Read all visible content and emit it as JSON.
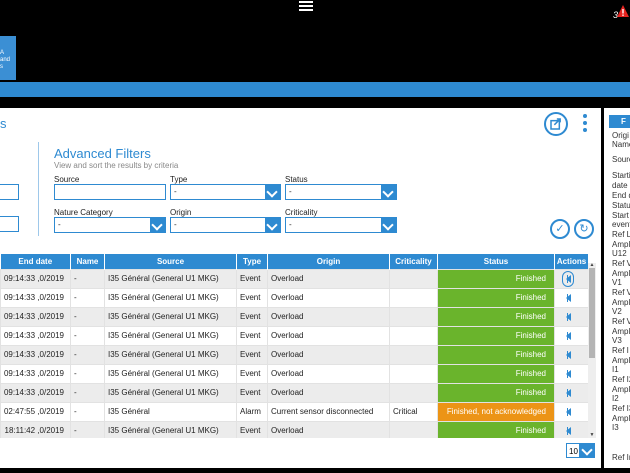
{
  "topbar": {
    "alert_count": "3"
  },
  "tile": {
    "lines": [
      "A",
      "and",
      "s"
    ]
  },
  "page": {
    "title_fragment": "s"
  },
  "filters": {
    "title": "Advanced Filters",
    "subtitle": "View and sort the results by criteria",
    "source_label": "Source",
    "type_label": "Type",
    "type_value": "-",
    "status_label": "Status",
    "status_value": "-",
    "nature_label": "Nature Category",
    "nature_value": "-",
    "origin_label": "Origin",
    "origin_value": "-",
    "criticality_label": "Criticality",
    "criticality_value": "-",
    "apply_symbol": "✓",
    "reset_symbol": "↻"
  },
  "table": {
    "headers": [
      "End date",
      "Name",
      "Source",
      "Type",
      "Origin",
      "Criticality",
      "Status",
      "Actions"
    ],
    "rows": [
      {
        "end_date": "0/2019, 09:14:33",
        "name": "-",
        "source": "I35 Général (General U1 MKG)",
        "type": "Event",
        "origin": "Overload",
        "criticality": "",
        "status": "Finished",
        "status_kind": "ok"
      },
      {
        "end_date": "0/2019, 09:14:33",
        "name": "-",
        "source": "I35 Général (General U1 MKG)",
        "type": "Event",
        "origin": "Overload",
        "criticality": "",
        "status": "Finished",
        "status_kind": "ok"
      },
      {
        "end_date": "0/2019, 09:14:33",
        "name": "-",
        "source": "I35 Général (General U1 MKG)",
        "type": "Event",
        "origin": "Overload",
        "criticality": "",
        "status": "Finished",
        "status_kind": "ok"
      },
      {
        "end_date": "0/2019, 09:14:33",
        "name": "-",
        "source": "I35 Général (General U1 MKG)",
        "type": "Event",
        "origin": "Overload",
        "criticality": "",
        "status": "Finished",
        "status_kind": "ok"
      },
      {
        "end_date": "0/2019, 09:14:33",
        "name": "-",
        "source": "I35 Général (General U1 MKG)",
        "type": "Event",
        "origin": "Overload",
        "criticality": "",
        "status": "Finished",
        "status_kind": "ok"
      },
      {
        "end_date": "0/2019, 09:14:33",
        "name": "-",
        "source": "I35 Général (General U1 MKG)",
        "type": "Event",
        "origin": "Overload",
        "criticality": "",
        "status": "Finished",
        "status_kind": "ok"
      },
      {
        "end_date": "0/2019, 09:14:33",
        "name": "-",
        "source": "I35 Général (General U1 MKG)",
        "type": "Event",
        "origin": "Overload",
        "criticality": "",
        "status": "Finished",
        "status_kind": "ok"
      },
      {
        "end_date": "0/2019, 02:47:55",
        "name": "-",
        "source": "I35 Général",
        "type": "Alarm",
        "origin": "Current sensor disconnected",
        "criticality": "Critical",
        "status": "Finished, not acknowledged",
        "status_kind": "warn"
      },
      {
        "end_date": "0/2019, 18:11:42",
        "name": "-",
        "source": "I35 Général (General U1 MKG)",
        "type": "Event",
        "origin": "Overload",
        "criticality": "",
        "status": "Finished",
        "status_kind": "ok"
      }
    ]
  },
  "pagination": {
    "page_size": "10"
  },
  "details_panel": {
    "header": "F",
    "labels": [
      "Origi",
      "Name",
      "Sourc",
      "Starti",
      "date",
      "End d",
      "Status",
      "Start",
      "event",
      "Ref L",
      "Ampli",
      "U12",
      "Ref V",
      "Ampli",
      "V1",
      "Ref V",
      "Ampli",
      "V2",
      "Ref V",
      "Ampli",
      "V3",
      "Ref I",
      "Ampli",
      "I1",
      "Ref I2",
      "Ampli",
      "I2",
      "Ref I3",
      "Ampli",
      "I3",
      "Ref In"
    ]
  },
  "colors": {
    "accent": "#2e8ad1",
    "ok": "#6ab42c",
    "warn": "#ec9416"
  }
}
